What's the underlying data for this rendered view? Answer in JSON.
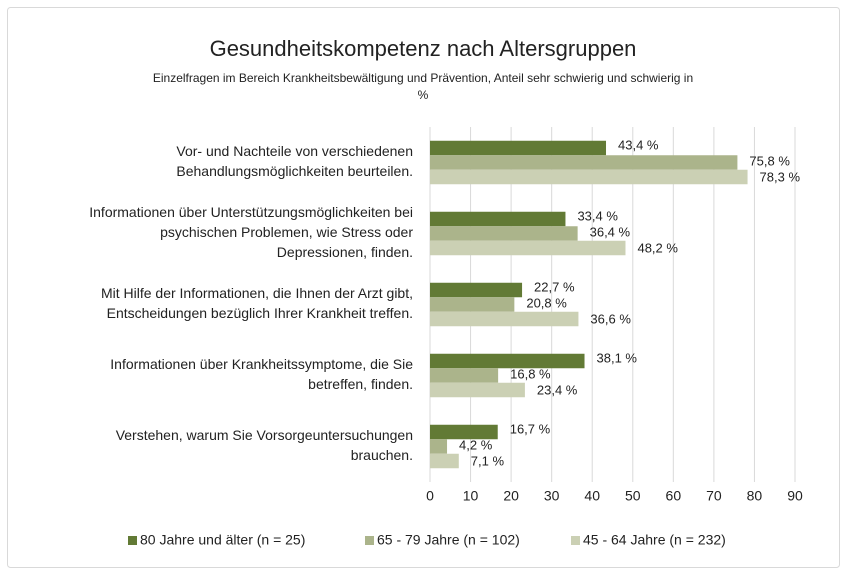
{
  "chart_data": {
    "type": "hbar",
    "title": "Gesundheitskompetenz nach Altersgruppen",
    "subtitle": [
      "Einzelfragen im Bereich Krankheitsbewältigung und Prävention, Anteil sehr schwierig und schwierig in",
      "%"
    ],
    "categories": [
      [
        "Vor- und Nachteile von verschiedenen",
        "Behandlungsmöglichkeiten beurteilen."
      ],
      [
        "Informationen über Unterstützungsmöglichkeiten bei",
        "psychischen Problemen, wie Stress oder",
        "Depressionen, finden."
      ],
      [
        "Mit Hilfe der Informationen, die Ihnen der Arzt gibt,",
        "Entscheidungen bezüglich Ihrer Krankheit treffen."
      ],
      [
        "Informationen über Krankheitssymptome, die Sie",
        "betreffen, finden."
      ],
      [
        "Verstehen, warum Sie Vorsorgeuntersuchungen",
        "brauchen."
      ]
    ],
    "series": [
      {
        "name": "80 Jahre und älter (n = 25)",
        "color": "#627a35",
        "values": [
          43.4,
          33.4,
          22.7,
          38.1,
          16.7
        ],
        "value_labels": [
          "43,4 %",
          "33,4 %",
          "22,7 %",
          "38,1 %",
          "16,7 %"
        ]
      },
      {
        "name": "65 - 79 Jahre (n = 102)",
        "color": "#abb48b",
        "values": [
          75.8,
          36.4,
          20.8,
          16.8,
          4.2
        ],
        "value_labels": [
          "75,8 %",
          "36,4 %",
          "20,8 %",
          "16,8 %",
          "4,2 %"
        ]
      },
      {
        "name": "45 - 64 Jahre (n = 232)",
        "color": "#cbd0b4",
        "values": [
          78.3,
          48.2,
          36.6,
          23.4,
          7.1
        ],
        "value_labels": [
          "78,3 %",
          "48,2 %",
          "36,6 %",
          "23,4 %",
          "7,1 %"
        ]
      }
    ],
    "xlim": [
      0,
      90
    ],
    "xticks": [
      0,
      10,
      20,
      30,
      40,
      50,
      60,
      70,
      80,
      90
    ],
    "grid": true,
    "legend": "bottom"
  }
}
